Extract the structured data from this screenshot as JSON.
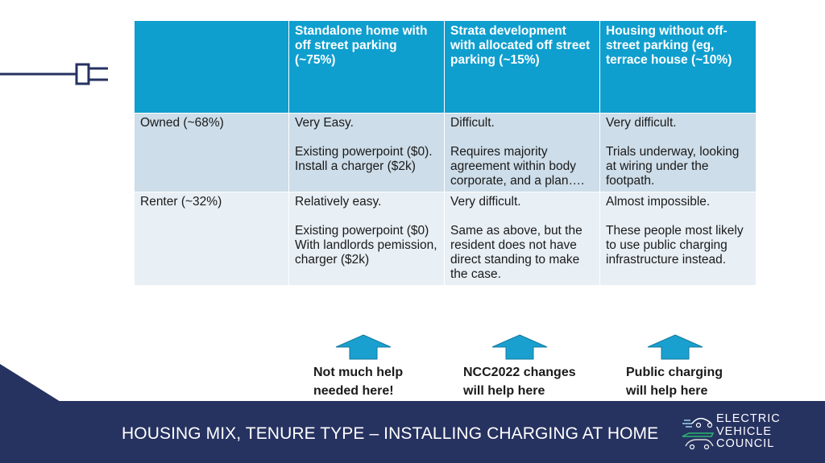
{
  "table": {
    "header": [
      "",
      "Standalone home with off street parking (~75%)",
      "Strata development with allocated off street parking (~15%)",
      "Housing without off-street parking (eg, terrace house (~10%)"
    ],
    "rows": [
      {
        "label": "Owned (~68%)",
        "cells": [
          [
            "Very Easy.",
            "Existing powerpoint ($0). Install a charger ($2k)"
          ],
          [
            "Difficult.",
            "Requires majority agreement within body corporate, and a plan…."
          ],
          [
            "Very difficult.",
            "Trials underway, looking at wiring under the footpath."
          ]
        ]
      },
      {
        "label": "Renter (~32%)",
        "cells": [
          [
            "Relatively easy.",
            "Existing powerpoint ($0) With landlords pemission, charger ($2k)"
          ],
          [
            "Very difficult.",
            "Same as above, but the resident does not have direct standing to make the case."
          ],
          [
            "Almost impossible.",
            "These people most likely to use public charging infrastructure instead."
          ]
        ]
      }
    ]
  },
  "notes": [
    {
      "line1": "Not much help",
      "line2": "needed here!"
    },
    {
      "line1": "NCC2022 changes",
      "line2": "will help here"
    },
    {
      "line1": "Public charging",
      "line2": "will help here"
    }
  ],
  "footer": {
    "title": "HOUSING MIX, TENURE TYPE – INSTALLING CHARGING AT HOME"
  },
  "logo": {
    "line1": "ELECTRIC",
    "line2": "VEHICLE",
    "line3": "COUNCIL"
  },
  "colors": {
    "header_bg": "#0f9fcf",
    "row_owned": "#cddde9",
    "row_renter": "#e8eff5",
    "footer_bg": "#263260",
    "arrow": "#1aa0cf"
  },
  "icons": {
    "plug": "plug-icon",
    "arrow": "up-arrow-icon",
    "logo": "ev-car-logo-icon"
  }
}
